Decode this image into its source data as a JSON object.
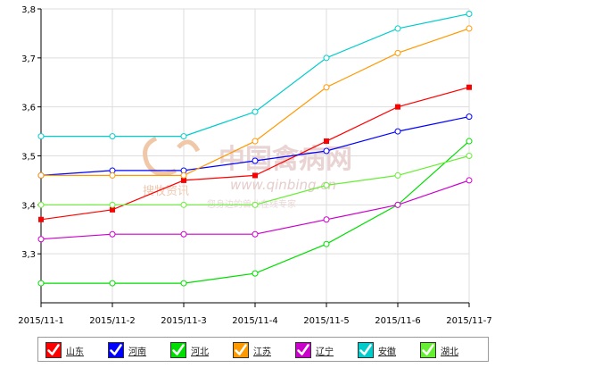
{
  "chart_data": {
    "type": "line",
    "x": [
      "2015/11-1",
      "2015/11-2",
      "2015/11-3",
      "2015/11-4",
      "2015/11-5",
      "2015/11-6",
      "2015/11-7"
    ],
    "ylim": [
      3.2,
      3.8
    ],
    "yticks": [
      "3,3",
      "3,4",
      "3,5",
      "3,6",
      "3,7",
      "3,8"
    ],
    "grid": true,
    "legend": "bottom",
    "series": [
      {
        "name": "山东",
        "color": "#ff0000",
        "marker": "square",
        "values": [
          3.37,
          3.39,
          3.45,
          3.46,
          3.53,
          3.6,
          3.64
        ]
      },
      {
        "name": "河南",
        "color": "#0000ff",
        "marker": "circle",
        "values": [
          3.46,
          3.47,
          3.47,
          3.49,
          3.51,
          3.55,
          3.58
        ]
      },
      {
        "name": "河北",
        "color": "#00dd00",
        "marker": "circle",
        "values": [
          3.24,
          3.24,
          3.24,
          3.26,
          3.32,
          3.4,
          3.53
        ]
      },
      {
        "name": "江苏",
        "color": "#ff9900",
        "marker": "circle",
        "values": [
          3.46,
          3.46,
          3.46,
          3.53,
          3.64,
          3.71,
          3.76
        ]
      },
      {
        "name": "辽宁",
        "color": "#cc00cc",
        "marker": "circle",
        "values": [
          3.33,
          3.34,
          3.34,
          3.34,
          3.37,
          3.4,
          3.45
        ]
      },
      {
        "name": "安徽",
        "color": "#00cccc",
        "marker": "circle",
        "values": [
          3.54,
          3.54,
          3.54,
          3.59,
          3.7,
          3.76,
          3.79
        ]
      },
      {
        "name": "湖北",
        "color": "#66ee33",
        "marker": "circle",
        "values": [
          3.4,
          3.4,
          3.4,
          3.4,
          3.44,
          3.46,
          3.5
        ]
      }
    ]
  },
  "watermark": {
    "cn_name": "中国禽病网",
    "url": "www.qinbing.cn",
    "brand": "搜牧资讯",
    "slogan": "您身边的兽业在线专家"
  }
}
